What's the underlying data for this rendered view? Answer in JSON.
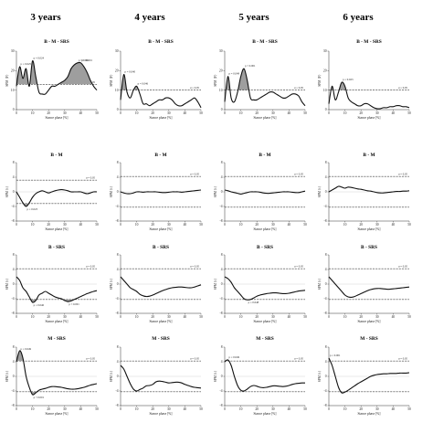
{
  "figure": {
    "columns": [
      "3 years",
      "4 years",
      "5 years",
      "6 years"
    ],
    "rows": [
      "B - M - SRS",
      "B - M",
      "B - SRS",
      "M - SRS"
    ]
  },
  "chart_data": [
    {
      "type": "line",
      "title": "B - M - SRS",
      "column": "3 years",
      "xlabel": "Stance phase [%]",
      "ylabel": "SPM {F}",
      "xlim": [
        0,
        50
      ],
      "ylim": [
        0,
        30
      ],
      "x": [
        0,
        2,
        4,
        6,
        8,
        10,
        12,
        14,
        16,
        18,
        20,
        22,
        24,
        26,
        28,
        30,
        32,
        34,
        36,
        38,
        40,
        42,
        44,
        46,
        48,
        50
      ],
      "values": [
        12,
        22,
        16,
        21,
        12,
        25,
        17,
        9,
        8,
        8,
        10,
        12,
        12,
        13,
        14,
        15,
        17,
        21,
        23,
        24,
        24,
        22,
        19,
        15,
        12,
        10
      ],
      "threshold": 13,
      "threshold_label": "α = 0.05",
      "annotations": [
        "p = 0.025",
        "p = 0.024",
        "p < 0.001",
        "p < 0.001"
      ]
    },
    {
      "type": "line",
      "title": "B - M - SRS",
      "column": "4 years",
      "xlabel": "Stance phase [%]",
      "ylabel": "SPM {F}",
      "xlim": [
        0,
        50
      ],
      "ylim": [
        0,
        30
      ],
      "x": [
        0,
        2,
        4,
        6,
        8,
        10,
        12,
        14,
        16,
        18,
        20,
        22,
        24,
        26,
        28,
        30,
        32,
        34,
        36,
        38,
        40,
        42,
        44,
        46,
        48,
        50
      ],
      "values": [
        5,
        18,
        9,
        6,
        10,
        12,
        8,
        3,
        3,
        2,
        3,
        4,
        5,
        5,
        6,
        6,
        5,
        3,
        2,
        2,
        3,
        4,
        5,
        6,
        4,
        1
      ],
      "threshold": 10,
      "threshold_label": "α = 0.05",
      "annotations": [
        "p = 0.040",
        "p = 0.046"
      ]
    },
    {
      "type": "line",
      "title": "B - M - SRS",
      "column": "5 years",
      "xlabel": "Stance phase [%]",
      "ylabel": "SPM {F}",
      "xlim": [
        0,
        50
      ],
      "ylim": [
        0,
        30
      ],
      "x": [
        0,
        2,
        4,
        6,
        8,
        10,
        12,
        14,
        16,
        18,
        20,
        22,
        24,
        26,
        28,
        30,
        32,
        34,
        36,
        38,
        40,
        42,
        44,
        46,
        48,
        50
      ],
      "values": [
        4,
        17,
        6,
        4,
        9,
        17,
        21,
        15,
        6,
        5,
        5,
        6,
        7,
        8,
        9,
        9,
        8,
        7,
        6,
        6,
        7,
        8,
        8,
        7,
        4,
        2
      ],
      "threshold": 10,
      "threshold_label": "α = 0.05",
      "annotations": [
        "p = 0.049",
        "p < 0.001"
      ]
    },
    {
      "type": "line",
      "title": "B - M - SRS",
      "column": "6 years",
      "xlabel": "Stance phase [%]",
      "ylabel": "SPM {F}",
      "xlim": [
        0,
        50
      ],
      "ylim": [
        0,
        30
      ],
      "x": [
        0,
        2,
        4,
        6,
        8,
        10,
        12,
        14,
        16,
        18,
        20,
        22,
        24,
        26,
        28,
        30,
        32,
        34,
        36,
        38,
        40,
        42,
        44,
        46,
        48,
        50
      ],
      "values": [
        3,
        12,
        5,
        9,
        14,
        12,
        6,
        4,
        3,
        2,
        2,
        3,
        3,
        2,
        1,
        0.5,
        0.5,
        1,
        1,
        1.5,
        1.5,
        2,
        2,
        1.5,
        1.5,
        1
      ],
      "threshold": 10,
      "threshold_label": "α = 0.05",
      "annotations": [
        "p = 0.023"
      ]
    },
    {
      "type": "line",
      "title": "B - M",
      "column": "3 years",
      "xlabel": "Stance phase [%]",
      "ylabel": "SPM {t}",
      "xlim": [
        0,
        50
      ],
      "ylim": [
        -8,
        8
      ],
      "x": [
        0,
        2,
        4,
        6,
        8,
        10,
        12,
        14,
        16,
        18,
        20,
        22,
        24,
        26,
        28,
        30,
        32,
        34,
        36,
        38,
        40,
        42,
        44,
        46,
        48,
        50
      ],
      "values": [
        0,
        -1.5,
        -3,
        -4,
        -3,
        -1.5,
        -0.5,
        0,
        0.3,
        0,
        -0.3,
        0,
        0.3,
        0.5,
        0.6,
        0.5,
        0.3,
        0,
        0,
        0,
        0,
        -0.3,
        -0.5,
        -0.3,
        0,
        0
      ],
      "threshold": [
        3.2,
        -3.2
      ],
      "threshold_label": "α = 0.05",
      "annotations": [
        "p = 0.023"
      ]
    },
    {
      "type": "line",
      "title": "B - M",
      "column": "4 years",
      "xlabel": "Stance phase [%]",
      "ylabel": "SPM {t}",
      "xlim": [
        0,
        50
      ],
      "ylim": [
        -8,
        8
      ],
      "x": [
        0,
        2,
        4,
        6,
        8,
        10,
        12,
        14,
        16,
        18,
        20,
        22,
        24,
        26,
        28,
        30,
        32,
        34,
        36,
        38,
        40,
        42,
        44,
        46,
        48,
        50
      ],
      "values": [
        0,
        -0.3,
        -0.5,
        -0.5,
        -0.3,
        0,
        0,
        -0.1,
        0,
        0,
        0,
        0,
        -0.1,
        -0.2,
        -0.2,
        -0.1,
        0,
        0,
        0,
        -0.1,
        0,
        0.1,
        0.2,
        0.3,
        0.4,
        0.5
      ],
      "threshold": [
        4.2,
        -4.2
      ],
      "threshold_label": "α = 0.05",
      "annotations": []
    },
    {
      "type": "line",
      "title": "B - M",
      "column": "5 years",
      "xlabel": "Stance phase [%]",
      "ylabel": "SPM {t}",
      "xlim": [
        0,
        50
      ],
      "ylim": [
        -8,
        8
      ],
      "x": [
        0,
        2,
        4,
        6,
        8,
        10,
        12,
        14,
        16,
        18,
        20,
        22,
        24,
        26,
        28,
        30,
        32,
        34,
        36,
        38,
        40,
        42,
        44,
        46,
        48,
        50
      ],
      "values": [
        0.5,
        0.3,
        0,
        -0.2,
        -0.4,
        -0.6,
        -0.4,
        -0.2,
        0,
        0,
        0,
        -0.1,
        -0.3,
        -0.4,
        -0.4,
        -0.3,
        -0.2,
        -0.1,
        0,
        0,
        0,
        -0.1,
        -0.2,
        -0.2,
        0,
        0.2
      ],
      "threshold": [
        4.2,
        -4.2
      ],
      "threshold_label": "α = 0.05",
      "annotations": []
    },
    {
      "type": "line",
      "title": "B - M",
      "column": "6 years",
      "xlabel": "Stance phase [%]",
      "ylabel": "SPM {t}",
      "xlim": [
        0,
        50
      ],
      "ylim": [
        -8,
        8
      ],
      "x": [
        0,
        2,
        4,
        6,
        8,
        10,
        12,
        14,
        16,
        18,
        20,
        22,
        24,
        26,
        28,
        30,
        32,
        34,
        36,
        38,
        40,
        42,
        44,
        46,
        48,
        50
      ],
      "values": [
        0,
        0.5,
        1,
        1.5,
        1.3,
        1,
        1.3,
        1.2,
        1,
        0.8,
        0.7,
        0.5,
        0.3,
        0.2,
        0,
        -0.2,
        -0.3,
        -0.3,
        -0.2,
        -0.1,
        0,
        0.1,
        0.1,
        0.2,
        0.2,
        0.3
      ],
      "threshold": [
        4.2,
        -4.2
      ],
      "threshold_label": "α = 0.05",
      "annotations": []
    },
    {
      "type": "line",
      "title": "B - SRS",
      "column": "3 years",
      "xlabel": "Stance phase [%]",
      "ylabel": "SPM {t}",
      "xlim": [
        0,
        50
      ],
      "ylim": [
        -8,
        8
      ],
      "x": [
        0,
        2,
        4,
        6,
        8,
        10,
        12,
        14,
        16,
        18,
        20,
        22,
        24,
        26,
        28,
        30,
        32,
        34,
        36,
        38,
        40,
        42,
        44,
        46,
        48,
        50
      ],
      "values": [
        2,
        1,
        -1,
        -2,
        -3.5,
        -5,
        -4.5,
        -3,
        -2.5,
        -2,
        -2.5,
        -3,
        -3.5,
        -3.8,
        -4,
        -4.5,
        -4.8,
        -4.6,
        -4.2,
        -3.8,
        -3.4,
        -3,
        -2.6,
        -2.3,
        -2,
        -1.8
      ],
      "threshold": [
        4.2,
        -4.2
      ],
      "threshold_label": "α = 0.05",
      "annotations": [
        "p = 0.046",
        "p < 0.001"
      ]
    },
    {
      "type": "line",
      "title": "B - SRS",
      "column": "4 years",
      "xlabel": "Stance phase [%]",
      "ylabel": "SPM {t}",
      "xlim": [
        0,
        50
      ],
      "ylim": [
        -8,
        8
      ],
      "x": [
        0,
        2,
        4,
        6,
        8,
        10,
        12,
        14,
        16,
        18,
        20,
        22,
        24,
        26,
        28,
        30,
        32,
        34,
        36,
        38,
        40,
        42,
        44,
        46,
        48,
        50
      ],
      "values": [
        2,
        1,
        0,
        -1,
        -1.5,
        -2,
        -2.8,
        -3.2,
        -3.4,
        -3.3,
        -3,
        -2.6,
        -2.2,
        -1.8,
        -1.5,
        -1.2,
        -1,
        -0.9,
        -0.8,
        -0.8,
        -0.9,
        -1,
        -1,
        -0.8,
        -0.5,
        -0.2
      ],
      "threshold": [
        4.2,
        -4.2
      ],
      "threshold_label": "α = 0.05",
      "annotations": []
    },
    {
      "type": "line",
      "title": "B - SRS",
      "column": "5 years",
      "xlabel": "Stance phase [%]",
      "ylabel": "SPM {t}",
      "xlim": [
        0,
        50
      ],
      "ylim": [
        -8,
        8
      ],
      "x": [
        0,
        2,
        4,
        6,
        8,
        10,
        12,
        14,
        16,
        18,
        20,
        22,
        24,
        26,
        28,
        30,
        32,
        34,
        36,
        38,
        40,
        42,
        44,
        46,
        48,
        50
      ],
      "values": [
        2,
        1.5,
        0.5,
        -1,
        -2,
        -3,
        -4,
        -4.3,
        -4.2,
        -3.8,
        -3.3,
        -3,
        -2.8,
        -2.6,
        -2.5,
        -2.4,
        -2.4,
        -2.5,
        -2.6,
        -2.6,
        -2.5,
        -2.3,
        -2.1,
        -1.9,
        -1.8,
        -1.7
      ],
      "threshold": [
        4.2,
        -4.2
      ],
      "threshold_label": "α = 0.05",
      "annotations": [
        "p = 0.048"
      ]
    },
    {
      "type": "line",
      "title": "B - SRS",
      "column": "6 years",
      "xlabel": "Stance phase [%]",
      "ylabel": "SPM {t}",
      "xlim": [
        0,
        50
      ],
      "ylim": [
        -8,
        8
      ],
      "x": [
        0,
        2,
        4,
        6,
        8,
        10,
        12,
        14,
        16,
        18,
        20,
        22,
        24,
        26,
        28,
        30,
        32,
        34,
        36,
        38,
        40,
        42,
        44,
        46,
        48,
        50
      ],
      "values": [
        2,
        1,
        0,
        -1,
        -2,
        -3,
        -3.5,
        -3.6,
        -3.4,
        -3,
        -2.6,
        -2.2,
        -1.8,
        -1.5,
        -1.3,
        -1.2,
        -1.2,
        -1.3,
        -1.4,
        -1.4,
        -1.3,
        -1.2,
        -1.1,
        -1,
        -0.9,
        -0.8
      ],
      "threshold": [
        4.2,
        -4.2
      ],
      "threshold_label": "α = 0.05",
      "annotations": []
    },
    {
      "type": "line",
      "title": "M - SRS",
      "column": "3 years",
      "xlabel": "Stance phase [%]",
      "ylabel": "SPM {t}",
      "xlim": [
        0,
        50
      ],
      "ylim": [
        -8,
        8
      ],
      "x": [
        0,
        2,
        4,
        6,
        8,
        10,
        12,
        14,
        16,
        18,
        20,
        22,
        24,
        26,
        28,
        30,
        32,
        34,
        36,
        38,
        40,
        42,
        44,
        46,
        48,
        50
      ],
      "values": [
        4,
        7,
        5,
        0,
        -3,
        -5,
        -4.5,
        -3.8,
        -3.5,
        -3.3,
        -3,
        -2.8,
        -2.8,
        -2.9,
        -3,
        -3.2,
        -3.4,
        -3.5,
        -3.5,
        -3.4,
        -3.2,
        -3,
        -2.7,
        -2.4,
        -2.2,
        -2
      ],
      "threshold": [
        4.2,
        -4.2
      ],
      "threshold_label": "α = 0.05",
      "annotations": [
        "p = 0.049",
        "p < 0.001"
      ]
    },
    {
      "type": "line",
      "title": "M - SRS",
      "column": "4 years",
      "xlabel": "Stance phase [%]",
      "ylabel": "SPM {t}",
      "xlim": [
        0,
        50
      ],
      "ylim": [
        -8,
        8
      ],
      "x": [
        0,
        2,
        4,
        6,
        8,
        10,
        12,
        14,
        16,
        18,
        20,
        22,
        24,
        26,
        28,
        30,
        32,
        34,
        36,
        38,
        40,
        42,
        44,
        46,
        48,
        50
      ],
      "values": [
        3,
        2,
        0,
        -2,
        -3.5,
        -4,
        -3.6,
        -3.2,
        -2.6,
        -2.5,
        -2.2,
        -1.5,
        -1.3,
        -1.4,
        -1.6,
        -1.8,
        -1.7,
        -1.6,
        -1.6,
        -1.8,
        -2.2,
        -2.5,
        -2.8,
        -3,
        -3.1,
        -3.2
      ],
      "threshold": [
        4.2,
        -4.2
      ],
      "threshold_label": "α = 0.05",
      "annotations": []
    },
    {
      "type": "line",
      "title": "M - SRS",
      "column": "5 years",
      "xlabel": "Stance phase [%]",
      "ylabel": "SPM {t}",
      "xlim": [
        0,
        50
      ],
      "ylim": [
        -8,
        8
      ],
      "x": [
        0,
        2,
        4,
        6,
        8,
        10,
        12,
        14,
        16,
        18,
        20,
        22,
        24,
        26,
        28,
        30,
        32,
        34,
        36,
        38,
        40,
        42,
        44,
        46,
        48,
        50
      ],
      "values": [
        4,
        4.5,
        3,
        0,
        -2.5,
        -3.8,
        -4,
        -3.5,
        -2.8,
        -2.5,
        -2.7,
        -3,
        -3.1,
        -3,
        -2.8,
        -2.6,
        -2.6,
        -2.7,
        -2.8,
        -2.7,
        -2.5,
        -2.2,
        -2,
        -1.9,
        -1.8,
        -1.8
      ],
      "threshold": [
        4.2,
        -4.2
      ],
      "threshold_label": "α = 0.05",
      "annotations": [
        "p = 0.049"
      ]
    },
    {
      "type": "line",
      "title": "M - SRS",
      "column": "6 years",
      "xlabel": "Stance phase [%]",
      "ylabel": "SPM {t}",
      "xlim": [
        0,
        50
      ],
      "ylim": [
        -8,
        8
      ],
      "x": [
        0,
        2,
        4,
        6,
        8,
        10,
        12,
        14,
        16,
        18,
        20,
        22,
        24,
        26,
        28,
        30,
        32,
        34,
        36,
        38,
        40,
        42,
        44,
        46,
        48,
        50
      ],
      "values": [
        5,
        3,
        0,
        -3,
        -4.5,
        -4.3,
        -3.8,
        -3.2,
        -2.6,
        -2,
        -1.5,
        -1,
        -0.5,
        0,
        0.3,
        0.5,
        0.6,
        0.7,
        0.7,
        0.8,
        0.8,
        0.8,
        0.9,
        0.9,
        0.9,
        1
      ],
      "threshold": [
        4.2,
        -4.2
      ],
      "threshold_label": "α = 0.05",
      "annotations": [
        "p = 0.001"
      ]
    }
  ]
}
